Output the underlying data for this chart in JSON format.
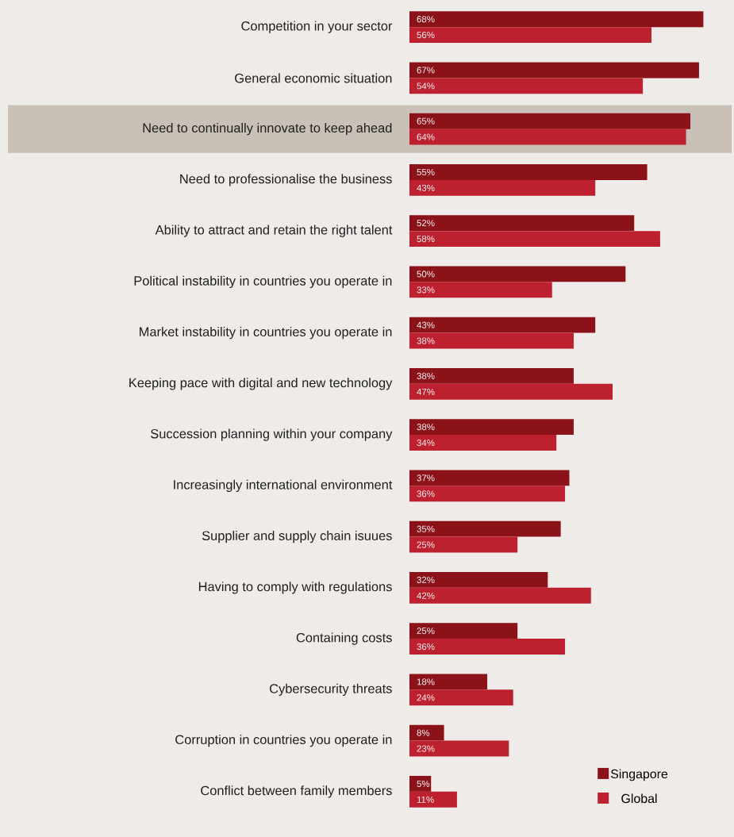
{
  "chart_data": {
    "type": "bar",
    "orientation": "horizontal",
    "legend": "bottom right",
    "categories": [
      "Competition in your sector",
      "General economic situation",
      "Need to continually innovate to keep ahead",
      "Need to professionalise the business",
      "Ability to attract and retain the right talent",
      "Political instability in countries you operate in",
      "Market instability in countries you operate in",
      "Keeping pace with digital and new technology",
      "Succession planning within your company",
      "Increasingly international environment",
      "Supplier and supply chain isuues",
      "Having to comply with regulations",
      "Containing costs",
      "Cybersecurity threats",
      "Corruption in countries you operate in",
      "Conflict between family members"
    ],
    "series": [
      {
        "name": "Singapore",
        "color": "#8b1219",
        "values": [
          68,
          67,
          65,
          55,
          52,
          50,
          43,
          38,
          38,
          37,
          35,
          32,
          25,
          18,
          8,
          5
        ],
        "value_labels": [
          "68%",
          "67%",
          "65%",
          "55%",
          "52%",
          "50%",
          "43%",
          "38%",
          "38%",
          "37%",
          "35%",
          "32%",
          "25%",
          "18%",
          "8%",
          "5%"
        ]
      },
      {
        "name": "Global",
        "color": "#bd202e",
        "values": [
          56,
          54,
          64,
          43,
          58,
          33,
          38,
          47,
          34,
          36,
          25,
          42,
          36,
          24,
          23,
          11
        ],
        "value_labels": [
          "56%",
          "54%",
          "64%",
          "43%",
          "58%",
          "33%",
          "38%",
          "47%",
          "34%",
          "36%",
          "25%",
          "42%",
          "36%",
          "24%",
          "23%",
          "11%"
        ]
      }
    ],
    "bands": [
      {
        "axis": "y",
        "from": "Need to continually innovate to keep ahead",
        "to": "Need to continually innovate to keep ahead",
        "color": "#c9c0b8"
      }
    ]
  }
}
